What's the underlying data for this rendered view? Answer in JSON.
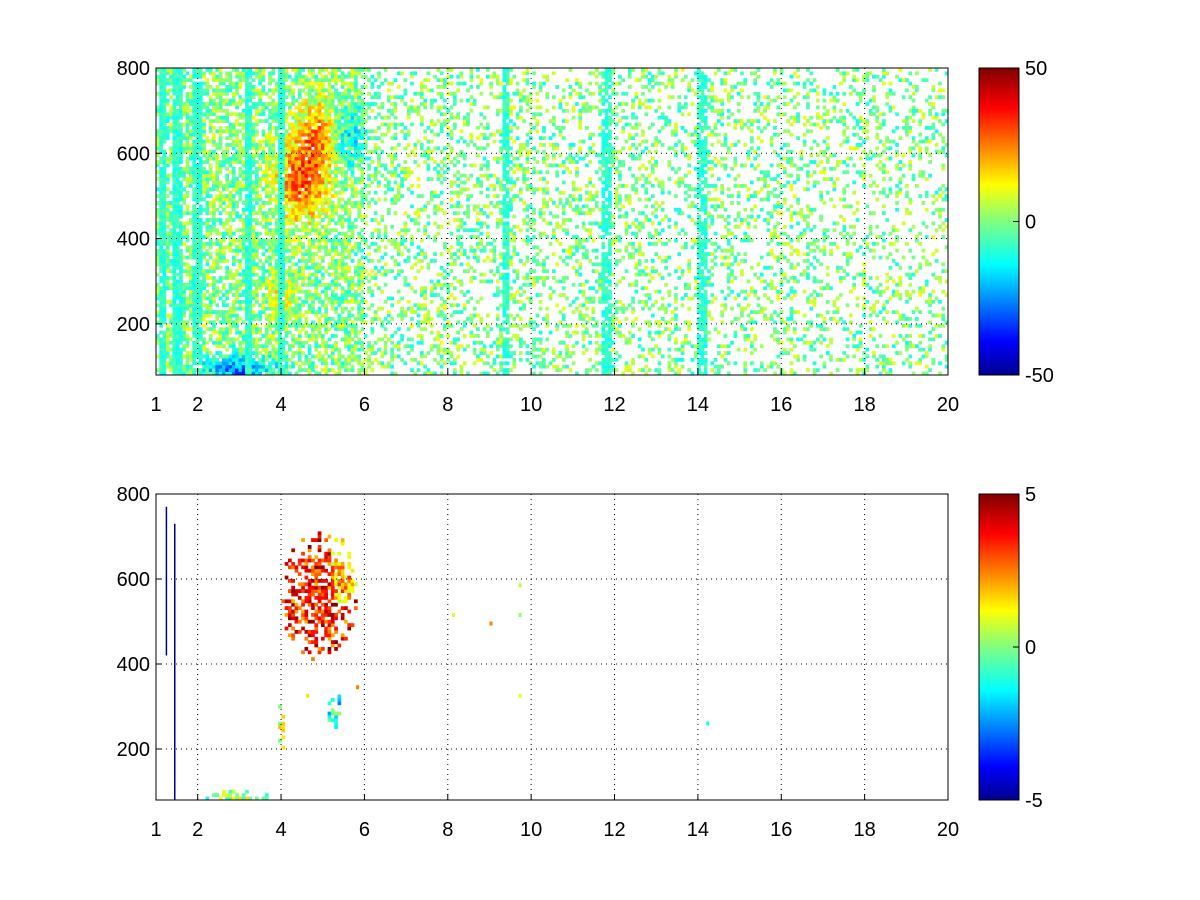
{
  "chart_data": [
    {
      "type": "heatmap",
      "title": "",
      "xlabel": "",
      "ylabel": "",
      "xlim": [
        1,
        20
      ],
      "ylim": [
        80,
        800
      ],
      "grid": true,
      "grid_style": "dotted",
      "colormap": "jet",
      "x_ticks": [
        1,
        2,
        4,
        6,
        8,
        10,
        12,
        14,
        16,
        18,
        20
      ],
      "y_ticks": [
        200,
        400,
        600,
        800
      ],
      "colorbar": {
        "range": [
          -50,
          50
        ],
        "ticks": [
          50,
          0,
          -50
        ],
        "placement": "right"
      },
      "dense_columns": [
        1.15,
        1.5,
        2.0,
        3.2,
        4.0,
        9.4,
        11.8,
        14.1
      ],
      "hotspots": [
        {
          "x": 4.5,
          "y": 540,
          "value": 28,
          "rx": 0.45,
          "ry": 70
        },
        {
          "x": 4.9,
          "y": 650,
          "value": 20,
          "rx": 0.3,
          "ry": 60
        },
        {
          "x": 5.6,
          "y": 640,
          "value": -12,
          "rx": 0.35,
          "ry": 50
        },
        {
          "x": 3.0,
          "y": 90,
          "value": -25,
          "rx": 0.6,
          "ry": 25
        },
        {
          "x": 4.0,
          "y": 260,
          "value": 15,
          "rx": 0.2,
          "ry": 40
        }
      ],
      "coverage": "dense, most values between -15 and 15"
    },
    {
      "type": "heatmap",
      "title": "",
      "xlabel": "",
      "ylabel": "",
      "xlim": [
        1,
        20
      ],
      "ylim": [
        80,
        800
      ],
      "grid": true,
      "grid_style": "dotted",
      "colormap": "jet",
      "x_ticks": [
        1,
        2,
        4,
        6,
        8,
        10,
        12,
        14,
        16,
        18,
        20
      ],
      "y_ticks": [
        200,
        400,
        600,
        800
      ],
      "colorbar": {
        "range": [
          -5,
          5
        ],
        "ticks": [
          5,
          0,
          -5
        ],
        "placement": "right"
      },
      "clusters": [
        {
          "x": 4.9,
          "y": 560,
          "value": 3.5,
          "rx": 0.55,
          "ry": 90
        },
        {
          "x": 5.4,
          "y": 600,
          "value": 2.0,
          "rx": 0.25,
          "ry": 60
        },
        {
          "x": 2.9,
          "y": 88,
          "value": 0.3,
          "rx": 0.5,
          "ry": 8
        },
        {
          "x": 4.0,
          "y": 250,
          "value": 0.8,
          "rx": 0.05,
          "ry": 40
        },
        {
          "x": 5.3,
          "y": 290,
          "value": -1.0,
          "rx": 0.1,
          "ry": 30
        }
      ],
      "lines": [
        {
          "x": 1.25,
          "y0": 420,
          "y1": 770,
          "value": -5
        },
        {
          "x": 1.45,
          "y0": 80,
          "y1": 730,
          "value": -5
        }
      ],
      "coverage": "sparse, nonzero mostly in cluster near x=4.5-6, y=450-720"
    }
  ]
}
